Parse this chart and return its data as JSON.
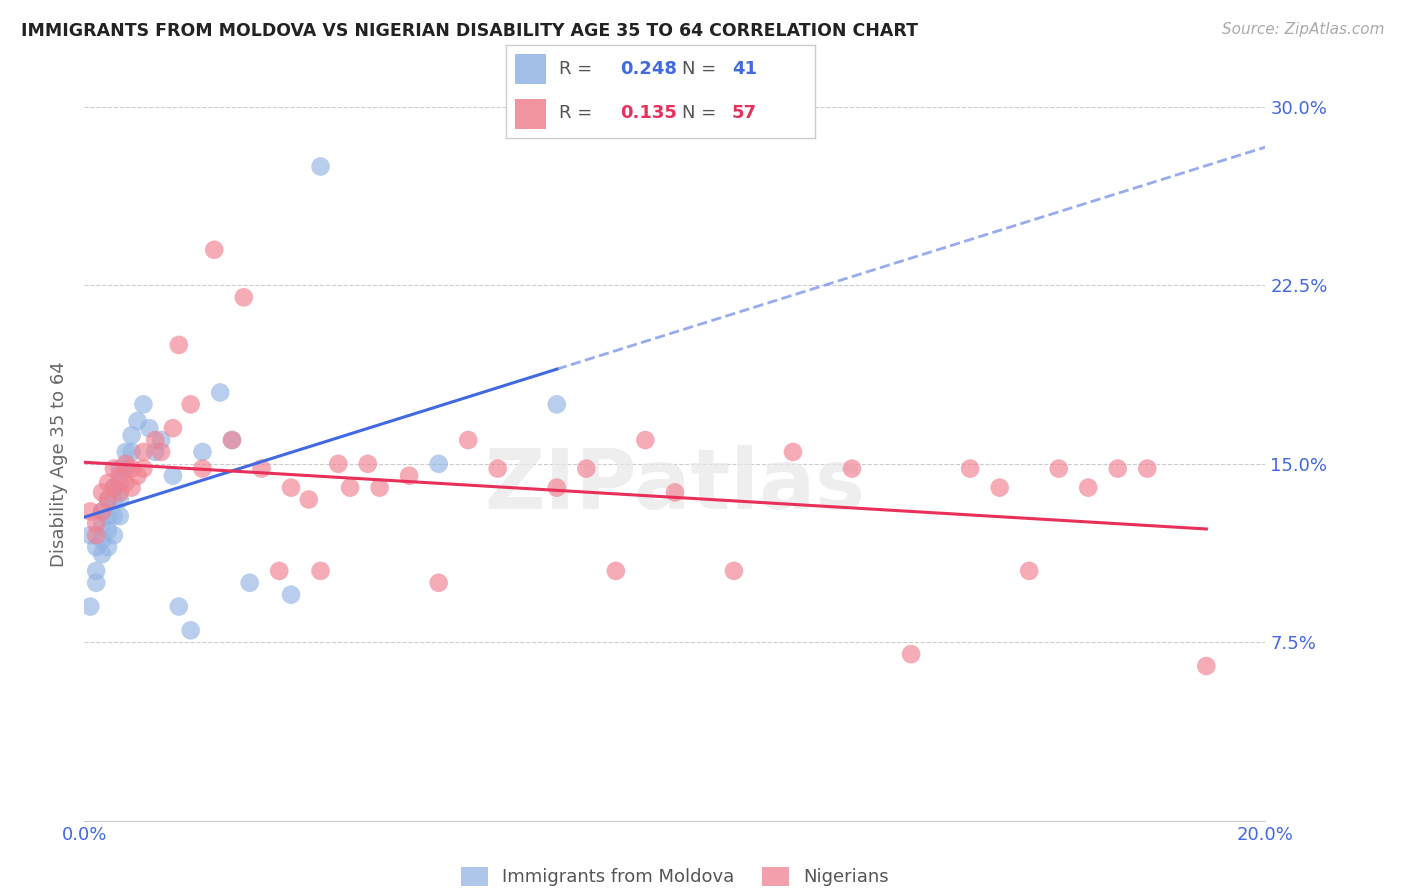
{
  "title": "IMMIGRANTS FROM MOLDOVA VS NIGERIAN DISABILITY AGE 35 TO 64 CORRELATION CHART",
  "source": "Source: ZipAtlas.com",
  "ylabel": "Disability Age 35 to 64",
  "xlim": [
    0.0,
    0.2
  ],
  "ylim": [
    0.0,
    0.3
  ],
  "yticks": [
    0.075,
    0.15,
    0.225,
    0.3
  ],
  "ytick_labels": [
    "7.5%",
    "15.0%",
    "22.5%",
    "30.0%"
  ],
  "xticks": [
    0.0,
    0.05,
    0.1,
    0.15,
    0.2
  ],
  "xtick_labels": [
    "0.0%",
    "",
    "",
    "",
    "20.0%"
  ],
  "moldova_R": 0.248,
  "moldova_N": 41,
  "nigerian_R": 0.135,
  "nigerian_N": 57,
  "moldova_color": "#92b4e3",
  "nigerian_color": "#f08090",
  "trend_moldova_color": "#4169e1",
  "trend_nigerian_color": "#e8305a",
  "axis_label_color": "#4169e1",
  "background_color": "#ffffff",
  "moldova_x": [
    0.001,
    0.001,
    0.002,
    0.002,
    0.002,
    0.003,
    0.003,
    0.003,
    0.003,
    0.004,
    0.004,
    0.004,
    0.004,
    0.005,
    0.005,
    0.005,
    0.005,
    0.006,
    0.006,
    0.006,
    0.006,
    0.007,
    0.007,
    0.008,
    0.008,
    0.009,
    0.01,
    0.011,
    0.012,
    0.013,
    0.015,
    0.016,
    0.018,
    0.02,
    0.023,
    0.025,
    0.028,
    0.035,
    0.04,
    0.06,
    0.08
  ],
  "moldova_y": [
    0.12,
    0.09,
    0.115,
    0.1,
    0.105,
    0.13,
    0.125,
    0.118,
    0.112,
    0.135,
    0.128,
    0.122,
    0.115,
    0.14,
    0.135,
    0.128,
    0.12,
    0.148,
    0.142,
    0.135,
    0.128,
    0.155,
    0.148,
    0.162,
    0.155,
    0.168,
    0.175,
    0.165,
    0.155,
    0.16,
    0.145,
    0.09,
    0.08,
    0.155,
    0.18,
    0.16,
    0.1,
    0.095,
    0.275,
    0.15,
    0.175
  ],
  "nigerian_x": [
    0.001,
    0.002,
    0.002,
    0.003,
    0.003,
    0.004,
    0.004,
    0.005,
    0.005,
    0.006,
    0.006,
    0.007,
    0.007,
    0.008,
    0.008,
    0.009,
    0.01,
    0.01,
    0.012,
    0.013,
    0.015,
    0.016,
    0.018,
    0.02,
    0.022,
    0.025,
    0.027,
    0.03,
    0.033,
    0.035,
    0.038,
    0.04,
    0.043,
    0.045,
    0.048,
    0.05,
    0.055,
    0.06,
    0.065,
    0.07,
    0.08,
    0.085,
    0.09,
    0.095,
    0.1,
    0.11,
    0.12,
    0.13,
    0.14,
    0.15,
    0.155,
    0.16,
    0.165,
    0.17,
    0.175,
    0.18,
    0.19
  ],
  "nigerian_y": [
    0.13,
    0.125,
    0.12,
    0.138,
    0.13,
    0.142,
    0.135,
    0.148,
    0.14,
    0.145,
    0.138,
    0.15,
    0.142,
    0.148,
    0.14,
    0.145,
    0.155,
    0.148,
    0.16,
    0.155,
    0.165,
    0.2,
    0.175,
    0.148,
    0.24,
    0.16,
    0.22,
    0.148,
    0.105,
    0.14,
    0.135,
    0.105,
    0.15,
    0.14,
    0.15,
    0.14,
    0.145,
    0.1,
    0.16,
    0.148,
    0.14,
    0.148,
    0.105,
    0.16,
    0.138,
    0.105,
    0.155,
    0.148,
    0.07,
    0.148,
    0.14,
    0.105,
    0.148,
    0.14,
    0.148,
    0.148,
    0.065
  ]
}
